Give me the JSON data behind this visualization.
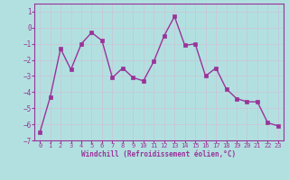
{
  "x": [
    0,
    1,
    2,
    3,
    4,
    5,
    6,
    7,
    8,
    9,
    10,
    11,
    12,
    13,
    14,
    15,
    16,
    17,
    18,
    19,
    20,
    21,
    22,
    23
  ],
  "y": [
    -6.5,
    -4.3,
    -1.3,
    -2.6,
    -1.0,
    -0.3,
    -0.8,
    -3.1,
    -2.5,
    -3.1,
    -3.3,
    -2.1,
    -0.5,
    0.7,
    -1.1,
    -1.0,
    -3.0,
    -2.5,
    -3.8,
    -4.4,
    -4.6,
    -4.6,
    -5.9,
    -6.1
  ],
  "line_color": "#993399",
  "marker": "s",
  "marker_size": 2.5,
  "bg_color": "#b2e0e0",
  "grid_color": "#c8c8d8",
  "xlabel": "Windchill (Refroidissement éolien,°C)",
  "xlabel_color": "#993399",
  "tick_color": "#993399",
  "ylim": [
    -7,
    1.5
  ],
  "xlim": [
    -0.5,
    23.5
  ],
  "yticks": [
    -7,
    -6,
    -5,
    -4,
    -3,
    -2,
    -1,
    0,
    1
  ],
  "xticks": [
    0,
    1,
    2,
    3,
    4,
    5,
    6,
    7,
    8,
    9,
    10,
    11,
    12,
    13,
    14,
    15,
    16,
    17,
    18,
    19,
    20,
    21,
    22,
    23
  ]
}
